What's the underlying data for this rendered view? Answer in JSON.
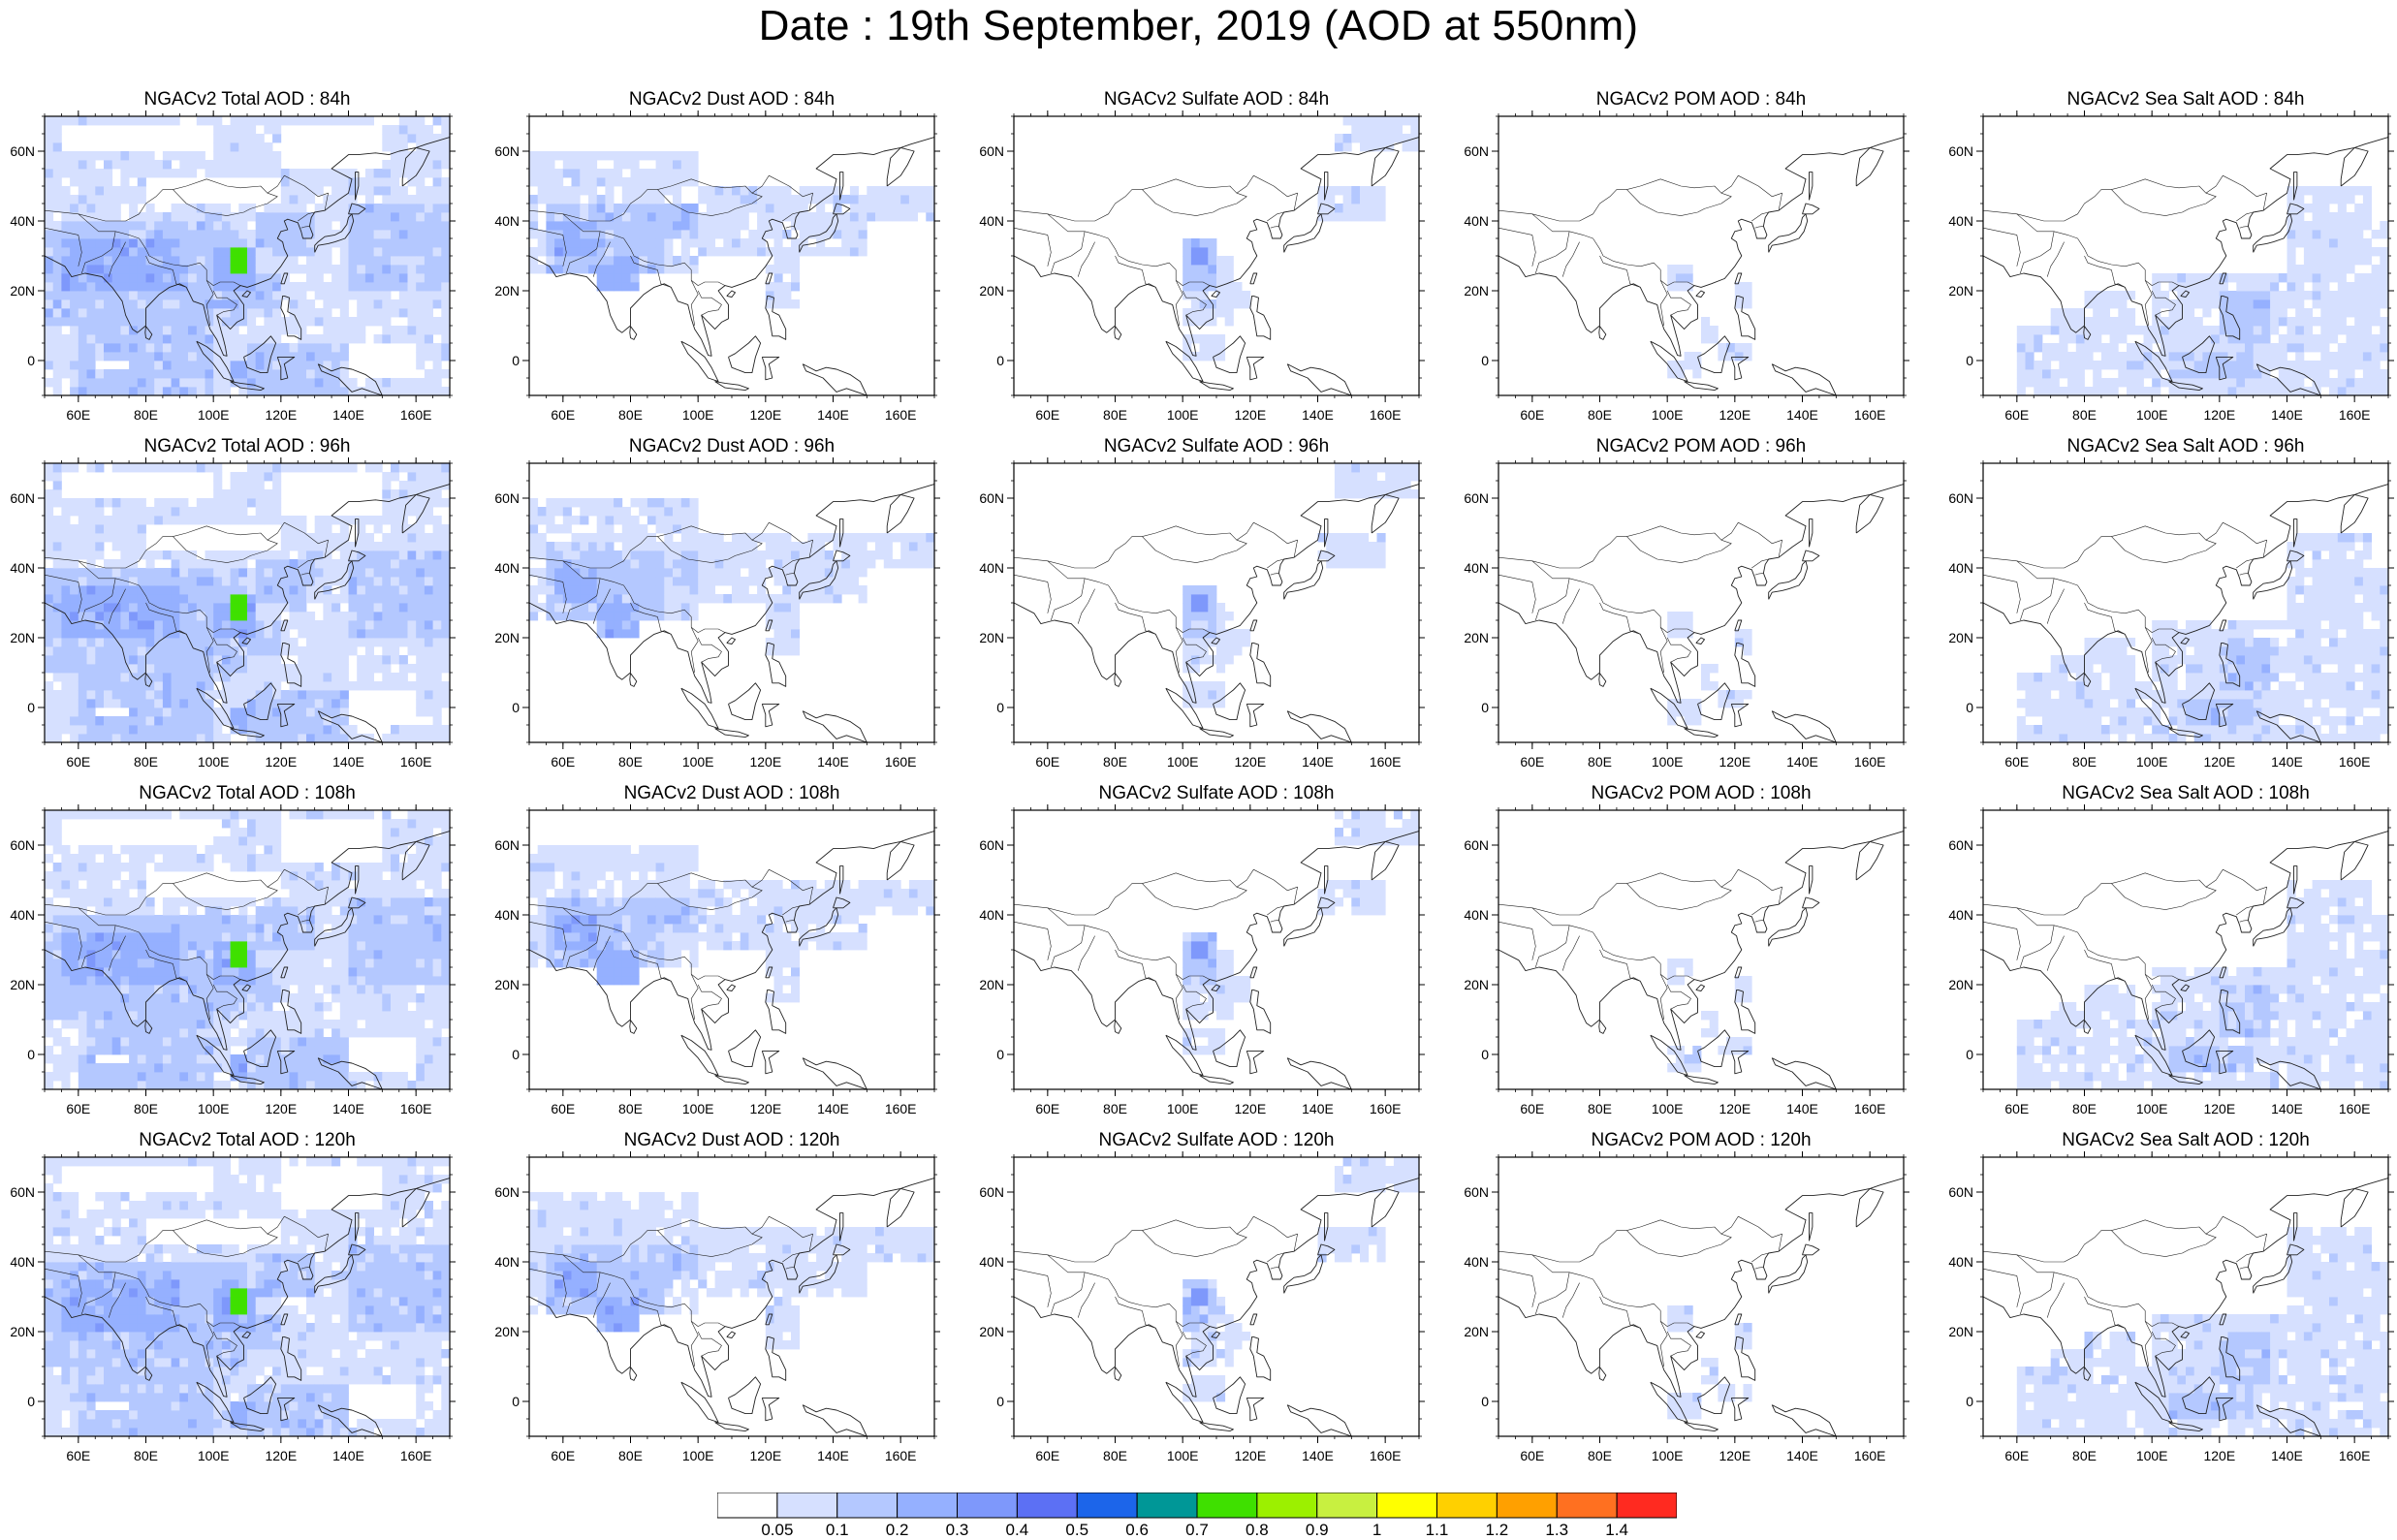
{
  "title": "Date : 19th September, 2019 (AOD at 550nm)",
  "lon_ticks": [
    "60E",
    "80E",
    "100E",
    "120E",
    "140E",
    "160E"
  ],
  "lat_ticks": [
    "60N",
    "40N",
    "20N",
    "0"
  ],
  "lon_values": [
    60,
    80,
    100,
    120,
    140,
    160
  ],
  "lat_values": [
    60,
    40,
    20,
    0
  ],
  "map_extent": {
    "lon_min": 50,
    "lon_max": 170,
    "lat_min": -10,
    "lat_max": 70
  },
  "panels": [
    {
      "title": "NGACv2 Total AOD : 84h",
      "species": "total",
      "lead_hours": 84
    },
    {
      "title": "NGACv2 Dust AOD : 84h",
      "species": "dust",
      "lead_hours": 84
    },
    {
      "title": "NGACv2 Sulfate AOD : 84h",
      "species": "sulfate",
      "lead_hours": 84
    },
    {
      "title": "NGACv2 POM AOD : 84h",
      "species": "pom",
      "lead_hours": 84
    },
    {
      "title": "NGACv2 Sea Salt AOD : 84h",
      "species": "seasalt",
      "lead_hours": 84
    },
    {
      "title": "NGACv2 Total AOD : 96h",
      "species": "total",
      "lead_hours": 96
    },
    {
      "title": "NGACv2 Dust AOD : 96h",
      "species": "dust",
      "lead_hours": 96
    },
    {
      "title": "NGACv2 Sulfate AOD : 96h",
      "species": "sulfate",
      "lead_hours": 96
    },
    {
      "title": "NGACv2 POM AOD : 96h",
      "species": "pom",
      "lead_hours": 96
    },
    {
      "title": "NGACv2 Sea Salt AOD : 96h",
      "species": "seasalt",
      "lead_hours": 96
    },
    {
      "title": "NGACv2 Total AOD : 108h",
      "species": "total",
      "lead_hours": 108
    },
    {
      "title": "NGACv2 Dust AOD : 108h",
      "species": "dust",
      "lead_hours": 108
    },
    {
      "title": "NGACv2 Sulfate AOD : 108h",
      "species": "sulfate",
      "lead_hours": 108
    },
    {
      "title": "NGACv2 POM AOD : 108h",
      "species": "pom",
      "lead_hours": 108
    },
    {
      "title": "NGACv2 Sea Salt AOD : 108h",
      "species": "seasalt",
      "lead_hours": 108
    },
    {
      "title": "NGACv2 Total AOD : 120h",
      "species": "total",
      "lead_hours": 120
    },
    {
      "title": "NGACv2 Dust AOD : 120h",
      "species": "dust",
      "lead_hours": 120
    },
    {
      "title": "NGACv2 Sulfate AOD : 120h",
      "species": "sulfate",
      "lead_hours": 120
    },
    {
      "title": "NGACv2 POM AOD : 120h",
      "species": "pom",
      "lead_hours": 120
    },
    {
      "title": "NGACv2 Sea Salt  AOD : 120h",
      "species": "seasalt",
      "lead_hours": 120
    }
  ],
  "colorbar": {
    "labels": [
      "0.05",
      "0.1",
      "0.2",
      "0.3",
      "0.4",
      "0.5",
      "0.6",
      "0.7",
      "0.8",
      "0.9",
      "1",
      "1.1",
      "1.2",
      "1.3",
      "1.4"
    ],
    "colors": [
      "#ffffff",
      "#d6e0ff",
      "#b4c8ff",
      "#95b0ff",
      "#7e98fb",
      "#5c70f4",
      "#1c65ea",
      "#009797",
      "#3fe000",
      "#9cf000",
      "#c8f040",
      "#ffff00",
      "#ffd000",
      "#ffa000",
      "#ff7020",
      "#ff2a20"
    ]
  }
}
